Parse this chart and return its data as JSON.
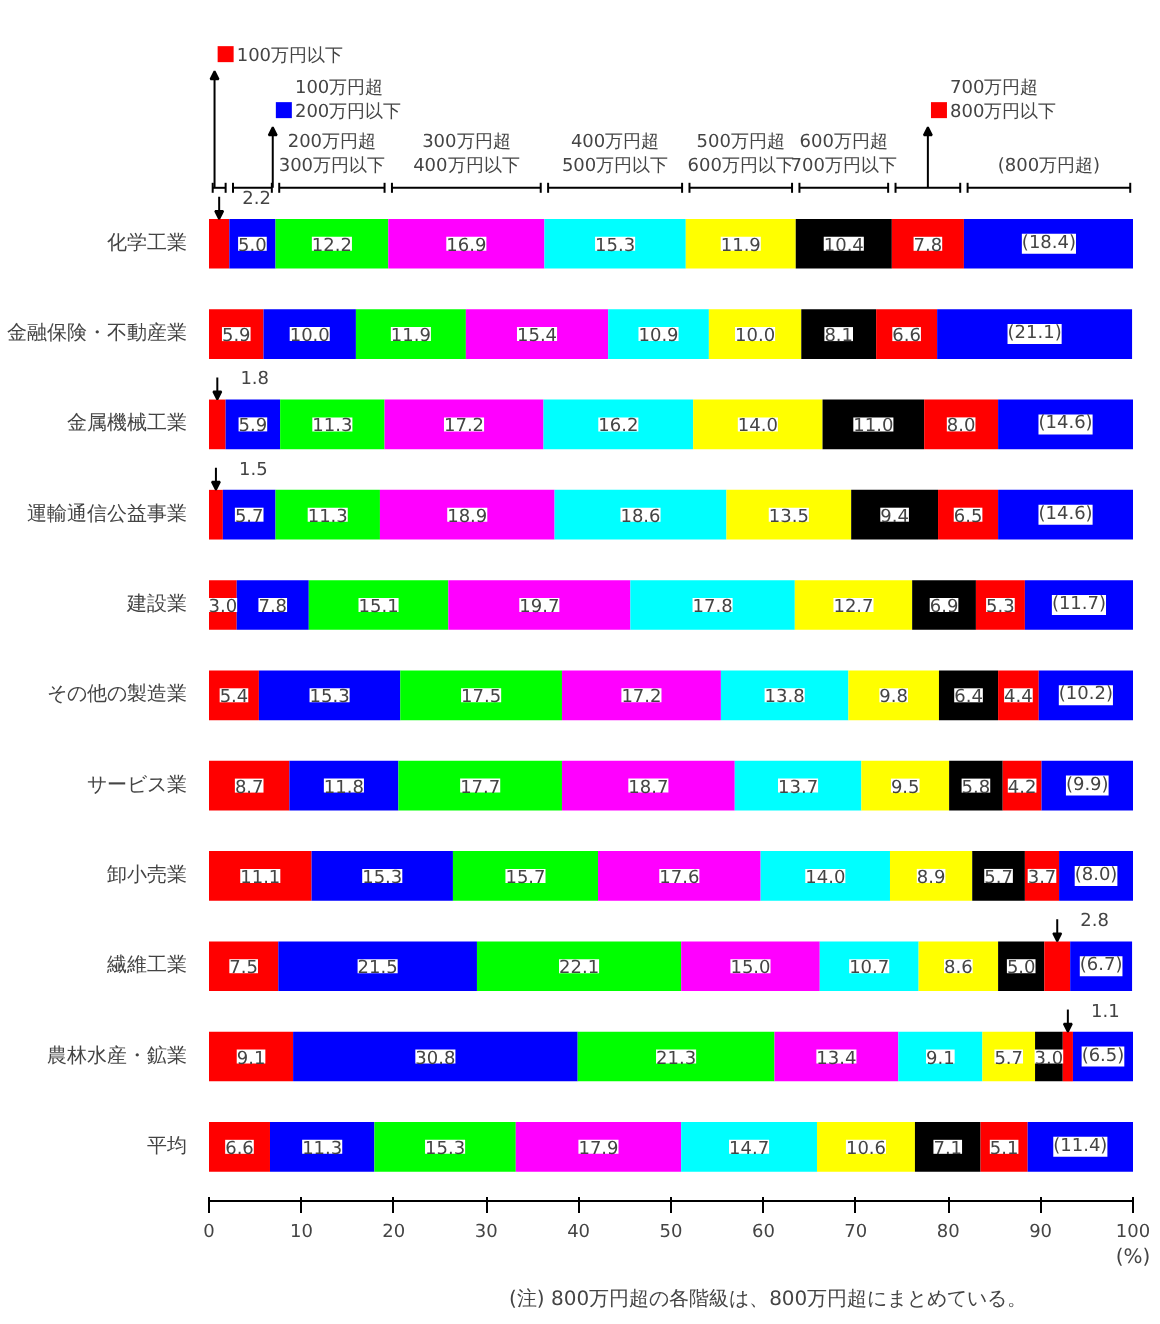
{
  "chart_data": {
    "type": "bar",
    "orientation": "horizontal",
    "stacked": true,
    "legend": "top",
    "categories": [
      "化学工業",
      "金融保険・不動産業",
      "金属機械工業",
      "運輸通信公益事業",
      "建設業",
      "その他の製造業",
      "サービス業",
      "卸小売業",
      "繊維工業",
      "農林水産・鉱業",
      "平均"
    ],
    "series": [
      {
        "name": "100万円以下",
        "color": "#ff0000",
        "values": [
          2.2,
          5.9,
          1.8,
          1.5,
          3.0,
          5.4,
          8.7,
          11.1,
          7.5,
          9.1,
          6.6
        ],
        "value_labels": [
          "2.2",
          "5.9",
          "1.8",
          "1.5",
          "3.0",
          "5.4",
          "8.7",
          "11.1",
          "7.5",
          "9.1",
          "6.6"
        ]
      },
      {
        "name": "100万円超\n200万円以下",
        "color": "#0000ff",
        "values": [
          5.0,
          10.0,
          5.9,
          5.7,
          7.8,
          15.3,
          11.8,
          15.3,
          21.5,
          30.8,
          11.3
        ],
        "value_labels": [
          "5.0",
          "10.0",
          "5.9",
          "5.7",
          "7.8",
          "15.3",
          "11.8",
          "15.3",
          "21.5",
          "30.8",
          "11.3"
        ]
      },
      {
        "name": "200万円超\n300万円以下",
        "color": "#00ff00",
        "values": [
          12.2,
          11.9,
          11.3,
          11.3,
          15.1,
          17.5,
          17.7,
          15.7,
          22.1,
          21.3,
          15.3
        ],
        "value_labels": [
          "12.2",
          "11.9",
          "11.3",
          "11.3",
          "15.1",
          "17.5",
          "17.7",
          "15.7",
          "22.1",
          "21.3",
          "15.3"
        ]
      },
      {
        "name": "300万円超\n400万円以下",
        "color": "#ff00ff",
        "values": [
          16.9,
          15.4,
          17.2,
          18.9,
          19.7,
          17.2,
          18.7,
          17.6,
          15.0,
          13.4,
          17.9
        ],
        "value_labels": [
          "16.9",
          "15.4",
          "17.2",
          "18.9",
          "19.7",
          "17.2",
          "18.7",
          "17.6",
          "15.0",
          "13.4",
          "17.9"
        ]
      },
      {
        "name": "400万円超\n500万円以下",
        "color": "#00ffff",
        "values": [
          15.3,
          10.9,
          16.2,
          18.6,
          17.8,
          13.8,
          13.7,
          14.0,
          10.7,
          9.1,
          14.7
        ],
        "value_labels": [
          "15.3",
          "10.9",
          "16.2",
          "18.6",
          "17.8",
          "13.8",
          "13.7",
          "14.0",
          "10.7",
          "9.1",
          "14.7"
        ]
      },
      {
        "name": "500万円超\n600万円以下",
        "color": "#ffff00",
        "values": [
          11.9,
          10.0,
          14.0,
          13.5,
          12.7,
          9.8,
          9.5,
          8.9,
          8.6,
          5.7,
          10.6
        ],
        "value_labels": [
          "11.9",
          "10.0",
          "14.0",
          "13.5",
          "12.7",
          "9.8",
          "9.5",
          "8.9",
          "8.6",
          "5.7",
          "10.6"
        ]
      },
      {
        "name": "600万円超\n700万円以下",
        "color": "#000000",
        "values": [
          10.4,
          8.1,
          11.0,
          9.4,
          6.9,
          6.4,
          5.8,
          5.7,
          5.0,
          3.0,
          7.1
        ],
        "value_labels": [
          "10.4",
          "8.1",
          "11.0",
          "9.4",
          "6.9",
          "6.4",
          "5.8",
          "5.7",
          "5.0",
          "3.0",
          "7.1"
        ]
      },
      {
        "name": "700万円超\n800万円以下",
        "color": "#ff0000",
        "values": [
          7.8,
          6.6,
          8.0,
          6.5,
          5.3,
          4.4,
          4.2,
          3.7,
          2.8,
          1.1,
          5.1
        ],
        "value_labels": [
          "7.8",
          "6.6",
          "8.0",
          "6.5",
          "5.3",
          "4.4",
          "4.2",
          "3.7",
          "2.8",
          "1.1",
          "5.1"
        ]
      },
      {
        "name": "(800万円超)",
        "color": "#0000ff",
        "values": [
          18.4,
          21.1,
          14.6,
          14.6,
          11.7,
          10.2,
          9.9,
          8.0,
          6.7,
          6.5,
          11.4
        ],
        "value_labels": [
          "(18.4)",
          "(21.1)",
          "(14.6)",
          "(14.6)",
          "(11.7)",
          "(10.2)",
          "(9.9)",
          "(8.0)",
          "(6.7)",
          "(6.5)",
          "(11.4)"
        ]
      }
    ],
    "xlim": [
      0,
      100
    ],
    "xticks": [
      0,
      10,
      20,
      30,
      40,
      50,
      60,
      70,
      80,
      90,
      100
    ],
    "xlabel": "(%)",
    "grid": false,
    "annotations": [
      "(注) 800万円超の各階級は、800万円超にまとめている。"
    ]
  }
}
